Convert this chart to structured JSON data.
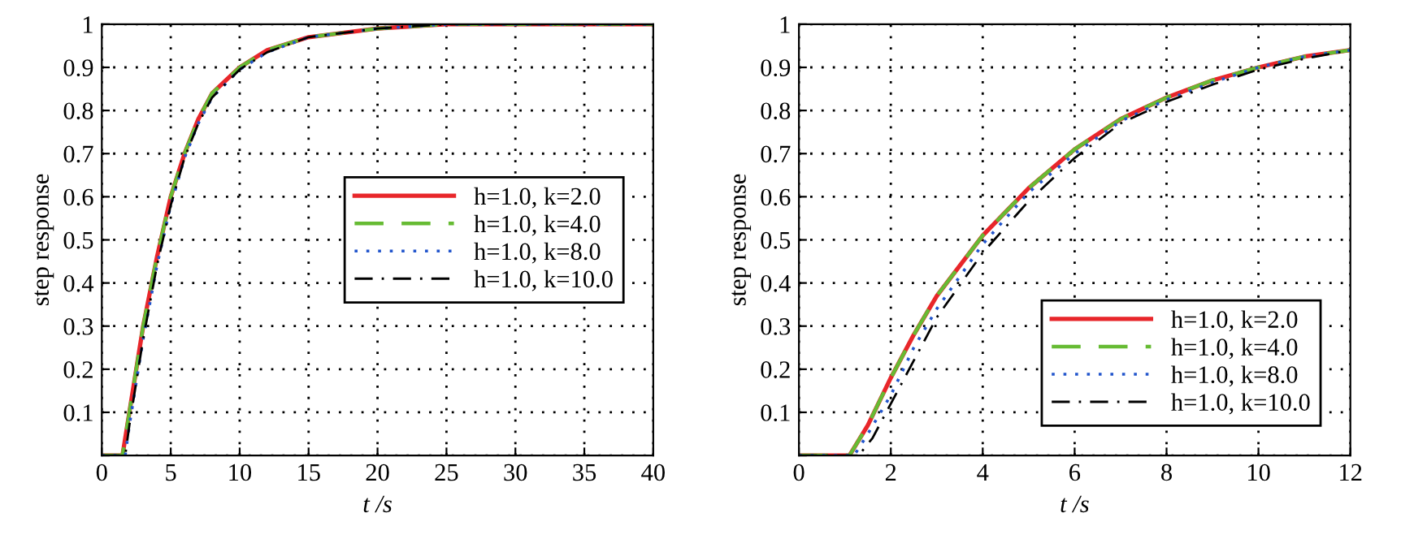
{
  "chart_data": [
    {
      "type": "line",
      "xlabel": "t /s",
      "ylabel": "step response",
      "xlim": [
        0,
        40
      ],
      "ylim": [
        0,
        1
      ],
      "xticks": [
        0,
        5,
        10,
        15,
        20,
        25,
        30,
        35,
        40
      ],
      "yticks": [
        {
          "value": 0,
          "label": null
        },
        0.1,
        0.2,
        0.3,
        0.4,
        0.5,
        0.6,
        0.7,
        0.8,
        0.9,
        1
      ],
      "grid": true,
      "legend": "right",
      "series": [
        {
          "name": "h=1.0, k=2.0",
          "color": "#e8262a",
          "line_style": "solid",
          "x": [
            0,
            1.5,
            2,
            3,
            4,
            5,
            6,
            7,
            8,
            10,
            12,
            15,
            20,
            25,
            40
          ],
          "values": [
            0,
            0,
            0.1,
            0.3,
            0.46,
            0.6,
            0.7,
            0.78,
            0.84,
            0.9,
            0.94,
            0.97,
            0.99,
            1,
            1
          ]
        },
        {
          "name": "h=1.0, k=4.0",
          "color": "#66bb33",
          "line_style": "dashed",
          "x": [
            0,
            1.5,
            2,
            3,
            4,
            5,
            6,
            7,
            8,
            10,
            12,
            15,
            20,
            25,
            40
          ],
          "values": [
            0,
            0,
            0.1,
            0.3,
            0.46,
            0.6,
            0.7,
            0.78,
            0.84,
            0.9,
            0.94,
            0.97,
            0.99,
            1,
            1
          ]
        },
        {
          "name": "h=1.0, k=8.0",
          "color": "#2255cc",
          "line_style": "dotted",
          "x": [
            0,
            1.7,
            2,
            3,
            4,
            5,
            6,
            7,
            8,
            10,
            12,
            15,
            20,
            25,
            40
          ],
          "values": [
            0,
            0,
            0.07,
            0.27,
            0.44,
            0.58,
            0.69,
            0.77,
            0.83,
            0.895,
            0.935,
            0.97,
            0.99,
            1,
            1
          ]
        },
        {
          "name": "h=1.0, k=10.0",
          "color": "#000000",
          "line_style": "dashdot",
          "x": [
            0,
            1.7,
            2,
            3,
            4,
            5,
            6,
            7,
            8,
            10,
            12,
            15,
            20,
            25,
            40
          ],
          "values": [
            0,
            0,
            0.07,
            0.27,
            0.44,
            0.58,
            0.69,
            0.77,
            0.83,
            0.895,
            0.935,
            0.97,
            0.99,
            1,
            1
          ]
        }
      ]
    },
    {
      "type": "line",
      "xlabel": "t /s",
      "ylabel": "step response",
      "xlim": [
        0,
        12
      ],
      "ylim": [
        0,
        1
      ],
      "xticks": [
        0,
        2,
        4,
        6,
        8,
        10,
        12
      ],
      "yticks": [
        {
          "value": 0,
          "label": null
        },
        0.1,
        0.2,
        0.3,
        0.4,
        0.5,
        0.6,
        0.7,
        0.8,
        0.9,
        1
      ],
      "grid": true,
      "legend": "bottom right",
      "series": [
        {
          "name": "h=1.0, k=2.0",
          "color": "#e8262a",
          "line_style": "solid",
          "x": [
            0,
            1.1,
            1.5,
            2,
            2.5,
            3,
            4,
            5,
            6,
            7,
            8,
            9,
            10,
            11,
            12
          ],
          "values": [
            0,
            0,
            0.07,
            0.18,
            0.28,
            0.37,
            0.51,
            0.62,
            0.71,
            0.78,
            0.83,
            0.87,
            0.9,
            0.925,
            0.94
          ]
        },
        {
          "name": "h=1.0, k=4.0",
          "color": "#66bb33",
          "line_style": "dashed",
          "x": [
            0,
            1.1,
            1.5,
            2,
            2.5,
            3,
            4,
            5,
            6,
            7,
            8,
            9,
            10,
            11,
            12
          ],
          "values": [
            0,
            0,
            0.07,
            0.18,
            0.28,
            0.37,
            0.51,
            0.62,
            0.71,
            0.78,
            0.83,
            0.87,
            0.9,
            0.925,
            0.94
          ]
        },
        {
          "name": "h=1.0, k=8.0",
          "color": "#2255cc",
          "line_style": "dotted",
          "x": [
            0,
            1.2,
            1.5,
            2,
            2.5,
            3,
            4,
            5,
            6,
            7,
            8,
            9,
            10,
            11,
            12
          ],
          "values": [
            0,
            0,
            0.05,
            0.14,
            0.25,
            0.34,
            0.49,
            0.61,
            0.7,
            0.775,
            0.825,
            0.865,
            0.9,
            0.925,
            0.94
          ]
        },
        {
          "name": "h=1.0, k=10.0",
          "color": "#000000",
          "line_style": "dashdot",
          "x": [
            0,
            1.3,
            1.6,
            2,
            2.5,
            3,
            4,
            5,
            6,
            7,
            8,
            9,
            10,
            11,
            12
          ],
          "values": [
            0,
            0,
            0.04,
            0.12,
            0.22,
            0.32,
            0.47,
            0.59,
            0.69,
            0.77,
            0.82,
            0.86,
            0.895,
            0.92,
            0.94
          ]
        }
      ]
    }
  ]
}
